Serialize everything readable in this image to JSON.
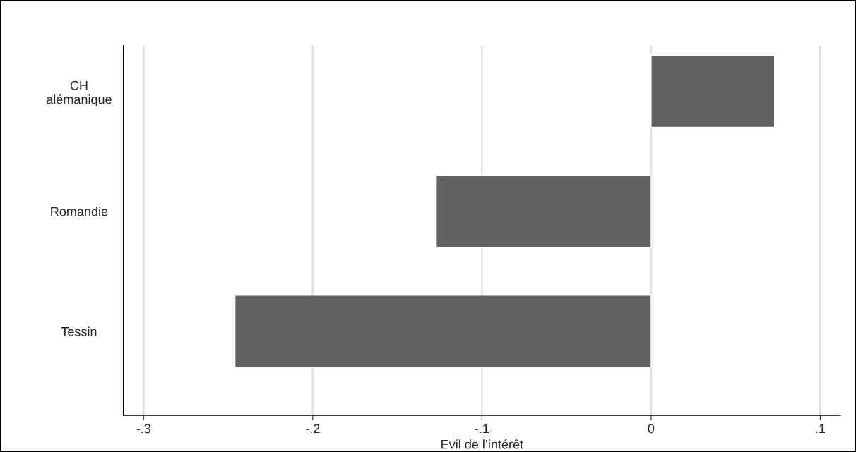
{
  "chart_data": {
    "type": "bar",
    "orientation": "horizontal",
    "xlabel": "Evil de l’intérêt",
    "categories": [
      "CH\nalémanique",
      "Romandie",
      "Tessin"
    ],
    "values": [
      0.073,
      -0.127,
      -0.246
    ],
    "color": "#616161",
    "xlim": [
      -0.312,
      0.112
    ],
    "xticks": [
      {
        "value": -0.3,
        "label": "-.3"
      },
      {
        "value": -0.2,
        "label": "-.2"
      },
      {
        "value": -0.1,
        "label": "-.1"
      },
      {
        "value": 0,
        "label": "0"
      },
      {
        "value": 0.1,
        "label": ".1"
      }
    ],
    "grid": "x"
  }
}
